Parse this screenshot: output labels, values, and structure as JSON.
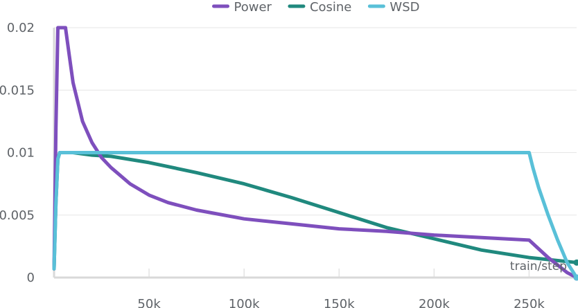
{
  "chart_data": {
    "type": "line",
    "xlabel": "train/step",
    "xlim": [
      0,
      275000
    ],
    "ylim": [
      0,
      0.02
    ],
    "grid": true,
    "legend_position": "top-center",
    "x_ticks": [
      {
        "value": 50000,
        "label": "50k"
      },
      {
        "value": 100000,
        "label": "100k"
      },
      {
        "value": 150000,
        "label": "150k"
      },
      {
        "value": 200000,
        "label": "200k"
      },
      {
        "value": 250000,
        "label": "250k"
      }
    ],
    "y_ticks": [
      {
        "value": 0,
        "label": "0"
      },
      {
        "value": 0.005,
        "label": "0.005"
      },
      {
        "value": 0.01,
        "label": "0.01"
      },
      {
        "value": 0.015,
        "label": "0.015"
      },
      {
        "value": 0.02,
        "label": "0.02"
      }
    ],
    "series": [
      {
        "name": "Power",
        "color": "#7e4fbd",
        "x": [
          0,
          1000,
          2000,
          6000,
          8000,
          10000,
          15000,
          20000,
          25000,
          30000,
          40000,
          50000,
          60000,
          75000,
          100000,
          125000,
          150000,
          175000,
          200000,
          225000,
          250000,
          255000,
          260000,
          265000,
          270000,
          275000
        ],
        "y": [
          0.0007,
          0.012,
          0.02,
          0.02,
          0.0178,
          0.0156,
          0.0125,
          0.0108,
          0.0096,
          0.0088,
          0.0075,
          0.0066,
          0.006,
          0.0054,
          0.0047,
          0.0043,
          0.0039,
          0.0037,
          0.0034,
          0.0032,
          0.003,
          0.0023,
          0.0016,
          0.001,
          0.0004,
          0.0
        ]
      },
      {
        "name": "Cosine",
        "color": "#20897e",
        "x": [
          0,
          1000,
          2000,
          3000,
          5000,
          10000,
          20000,
          30000,
          50000,
          75000,
          100000,
          125000,
          150000,
          175000,
          200000,
          225000,
          250000,
          275000
        ],
        "y": [
          0.0007,
          0.006,
          0.0095,
          0.01,
          0.01,
          0.01,
          0.0098,
          0.0097,
          0.0092,
          0.0084,
          0.0075,
          0.0064,
          0.0052,
          0.004,
          0.0031,
          0.0022,
          0.0016,
          0.0012
        ]
      },
      {
        "name": "WSD",
        "color": "#59c0d8",
        "x": [
          0,
          1000,
          2000,
          3000,
          5000,
          100000,
          200000,
          250000,
          252000,
          255000,
          260000,
          265000,
          270000,
          275000
        ],
        "y": [
          0.0007,
          0.006,
          0.0095,
          0.01,
          0.01,
          0.01,
          0.01,
          0.01,
          0.0088,
          0.0072,
          0.005,
          0.003,
          0.0012,
          0.0
        ]
      }
    ]
  }
}
